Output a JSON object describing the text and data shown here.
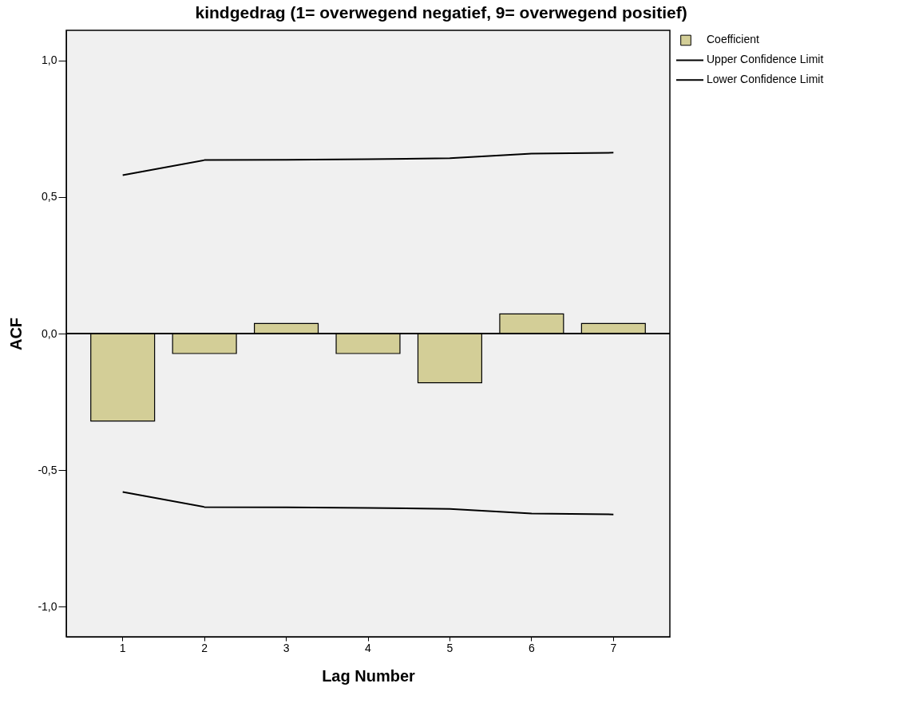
{
  "chart_data": {
    "type": "bar",
    "title": "kindgedrag (1= overwegend negatief, 9= overwegend positief)",
    "xlabel": "Lag Number",
    "ylabel": "ACF",
    "categories": [
      "1",
      "2",
      "3",
      "4",
      "5",
      "6",
      "7"
    ],
    "series": [
      {
        "name": "Coefficient",
        "color": "#d3ce97",
        "values": [
          -0.32,
          -0.073,
          0.037,
          -0.073,
          -0.18,
          0.072,
          0.037
        ]
      },
      {
        "name": "Upper Confidence Limit",
        "type": "line",
        "color": "#000000",
        "values": [
          0.58,
          0.635,
          0.636,
          0.638,
          0.642,
          0.659,
          0.662
        ]
      },
      {
        "name": "Lower Confidence Limit",
        "type": "line",
        "color": "#000000",
        "values": [
          -0.58,
          -0.635,
          -0.636,
          -0.638,
          -0.642,
          -0.659,
          -0.662
        ]
      }
    ],
    "ylim": [
      -1.11,
      1.11
    ],
    "yticks": [
      {
        "value": -1,
        "label": "-1,0"
      },
      {
        "value": -0.5,
        "label": "-0,5"
      },
      {
        "value": 0,
        "label": "0,0"
      },
      {
        "value": 0.5,
        "label": "0,5"
      },
      {
        "value": 1,
        "label": "1,0"
      }
    ],
    "ref_lines": [
      {
        "axis": "y",
        "value": 0,
        "color": "#000000"
      }
    ],
    "grid": false,
    "legend": "top right"
  }
}
